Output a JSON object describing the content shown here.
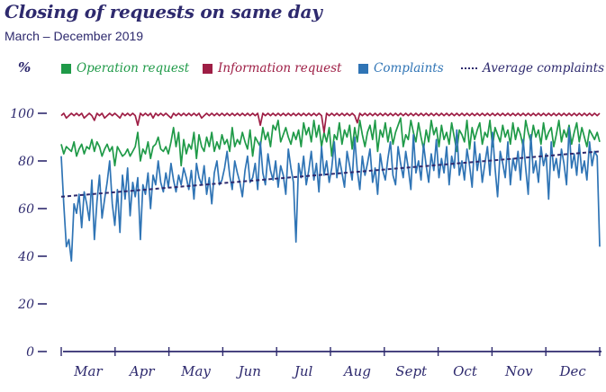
{
  "header": {
    "title": "Closing of requests on same day",
    "subtitle": "March – December 2019",
    "y_unit": "%"
  },
  "legend": [
    {
      "name": "Operation request",
      "color": "#1f9a48",
      "kind": "square"
    },
    {
      "name": "Information request",
      "color": "#9e1e45",
      "kind": "square"
    },
    {
      "name": "Complaints",
      "color": "#2f74b5",
      "kind": "square"
    },
    {
      "name": "Average complaints",
      "color": "#2e2a6e",
      "kind": "dotted"
    }
  ],
  "chart_data": {
    "type": "line",
    "title": "Closing of requests on same day",
    "subtitle": "March – December 2019",
    "ylabel": "%",
    "ylim": [
      0,
      100
    ],
    "yticks": [
      0,
      20,
      40,
      60,
      80,
      100
    ],
    "months": [
      "Mar",
      "Apr",
      "May",
      "Jun",
      "Jul",
      "Aug",
      "Sept",
      "Oct",
      "Nov",
      "Dec"
    ],
    "x": [
      1,
      2,
      3,
      4,
      5,
      6,
      7,
      8,
      9,
      10,
      11,
      12,
      13,
      14,
      15,
      16,
      17,
      18,
      19,
      20,
      21,
      22,
      23,
      24,
      25,
      26,
      27,
      28,
      29,
      30,
      31,
      32,
      33,
      34,
      35,
      36,
      37,
      38,
      39,
      40,
      41,
      42,
      43,
      44,
      45,
      46,
      47,
      48,
      49,
      50,
      51,
      52,
      53,
      54,
      55,
      56,
      57,
      58,
      59,
      60,
      61,
      62,
      63,
      64,
      65,
      66,
      67,
      68,
      69,
      70,
      71,
      72,
      73,
      74,
      75,
      76,
      77,
      78,
      79,
      80,
      81,
      82,
      83,
      84,
      85,
      86,
      87,
      88,
      89,
      90,
      91,
      92,
      93,
      94,
      95,
      96,
      97,
      98,
      99,
      100,
      101,
      102,
      103,
      104,
      105,
      106,
      107,
      108,
      109,
      110,
      111,
      112,
      113,
      114,
      115,
      116,
      117,
      118,
      119,
      120,
      121,
      122,
      123,
      124,
      125,
      126,
      127,
      128,
      129,
      130,
      131,
      132,
      133,
      134,
      135,
      136,
      137,
      138,
      139,
      140,
      141,
      142,
      143,
      144,
      145,
      146,
      147,
      148,
      149,
      150,
      151,
      152,
      153,
      154,
      155,
      156,
      157,
      158,
      159,
      160,
      161,
      162,
      163,
      164,
      165,
      166,
      167,
      168,
      169,
      170,
      171,
      172,
      173,
      174,
      175,
      176,
      177,
      178,
      179,
      180,
      181,
      182,
      183,
      184,
      185,
      186,
      187,
      188,
      189,
      190,
      191,
      192,
      193,
      194,
      195,
      196,
      197,
      198,
      199,
      200,
      201,
      202,
      203,
      204,
      205,
      206,
      207,
      208,
      209,
      210,
      211,
      212
    ],
    "series": [
      {
        "name": "Operation request",
        "color": "#1f9a48",
        "values": [
          87,
          83,
          86,
          85,
          84,
          88,
          82,
          85,
          87,
          83,
          86,
          85,
          89,
          84,
          88,
          86,
          82,
          85,
          87,
          84,
          86,
          78,
          86,
          84,
          82,
          83,
          85,
          82,
          84,
          86,
          92,
          80,
          85,
          83,
          88,
          81,
          86,
          87,
          90,
          85,
          84,
          86,
          83,
          88,
          94,
          86,
          92,
          78,
          89,
          83,
          87,
          85,
          92,
          81,
          91,
          86,
          84,
          90,
          86,
          92,
          84,
          88,
          85,
          91,
          87,
          89,
          84,
          94,
          86,
          89,
          87,
          92,
          88,
          85,
          93,
          82,
          90,
          88,
          86,
          94,
          89,
          92,
          86,
          95,
          93,
          97,
          88,
          91,
          94,
          90,
          87,
          92,
          89,
          93,
          86,
          96,
          91,
          94,
          88,
          97,
          90,
          95,
          86,
          92,
          88,
          94,
          82,
          91,
          89,
          96,
          87,
          93,
          90,
          95,
          85,
          94,
          88,
          97,
          91,
          86,
          92,
          95,
          89,
          97,
          84,
          93,
          90,
          96,
          88,
          94,
          87,
          92,
          95,
          98,
          86,
          91,
          89,
          97,
          92,
          88,
          96,
          90,
          85,
          93,
          88,
          97,
          91,
          94,
          86,
          95,
          89,
          92,
          87,
          96,
          90,
          84,
          93,
          91,
          88,
          97,
          85,
          94,
          89,
          93,
          96,
          87,
          92,
          90,
          97,
          86,
          94,
          91,
          88,
          95,
          90,
          93,
          87,
          96,
          89,
          94,
          91,
          86,
          97,
          92,
          88,
          95,
          90,
          93,
          87,
          96,
          89,
          92,
          94,
          86,
          91,
          97,
          88,
          93,
          90,
          95,
          87,
          92,
          96,
          88,
          94,
          90,
          86,
          93,
          91,
          89,
          92,
          88
        ]
      },
      {
        "name": "Information request",
        "color": "#9e1e45",
        "values": [
          99,
          100,
          98,
          99,
          100,
          99,
          100,
          99,
          100,
          98,
          99,
          100,
          99,
          97,
          100,
          99,
          100,
          98,
          99,
          100,
          99,
          100,
          99,
          98,
          100,
          99,
          100,
          99,
          100,
          99,
          95,
          100,
          99,
          100,
          99,
          100,
          98,
          100,
          99,
          100,
          99,
          100,
          99,
          98,
          100,
          99,
          100,
          99,
          100,
          99,
          100,
          99,
          100,
          99,
          100,
          98,
          99,
          100,
          99,
          100,
          99,
          100,
          99,
          100,
          99,
          100,
          99,
          100,
          99,
          100,
          99,
          100,
          99,
          100,
          99,
          100,
          99,
          100,
          95,
          100,
          99,
          100,
          99,
          100,
          99,
          100,
          99,
          100,
          99,
          100,
          99,
          100,
          99,
          100,
          99,
          100,
          99,
          100,
          99,
          100,
          99,
          100,
          99,
          92,
          100,
          99,
          100,
          99,
          100,
          99,
          100,
          99,
          100,
          99,
          100,
          99,
          96,
          100,
          99,
          100,
          99,
          100,
          99,
          100,
          99,
          100,
          99,
          100,
          99,
          100,
          99,
          100,
          99,
          100,
          99,
          100,
          99,
          100,
          99,
          100,
          99,
          100,
          99,
          100,
          99,
          100,
          99,
          100,
          99,
          100,
          99,
          100,
          99,
          100,
          99,
          100,
          99,
          100,
          99,
          100,
          99,
          100,
          99,
          100,
          99,
          100,
          99,
          100,
          99,
          100,
          99,
          100,
          99,
          100,
          99,
          100,
          99,
          100,
          99,
          100,
          99,
          100,
          99,
          100,
          99,
          100,
          99,
          100,
          99,
          100,
          99,
          100,
          99,
          100,
          99,
          100,
          99,
          100,
          99,
          100,
          99,
          100,
          99,
          100,
          99,
          100,
          99,
          100,
          99,
          100,
          99,
          100
        ]
      },
      {
        "name": "Complaints",
        "color": "#2f74b5",
        "values": [
          82,
          62,
          44,
          47,
          38,
          62,
          58,
          66,
          52,
          67,
          62,
          55,
          72,
          47,
          63,
          74,
          56,
          64,
          71,
          80,
          62,
          53,
          68,
          50,
          74,
          64,
          77,
          57,
          71,
          65,
          73,
          47,
          70,
          66,
          75,
          60,
          74,
          70,
          80,
          71,
          67,
          75,
          69,
          79,
          72,
          67,
          74,
          70,
          77,
          73,
          68,
          76,
          64,
          79,
          73,
          70,
          78,
          66,
          73,
          62,
          75,
          80,
          70,
          72,
          77,
          84,
          74,
          68,
          80,
          75,
          71,
          65,
          76,
          82,
          71,
          73,
          79,
          68,
          88,
          75,
          70,
          83,
          76,
          72,
          80,
          69,
          78,
          74,
          66,
          85,
          77,
          71,
          46,
          79,
          73,
          82,
          70,
          76,
          84,
          72,
          79,
          67,
          86,
          74,
          80,
          71,
          77,
          88,
          73,
          81,
          75,
          69,
          84,
          78,
          72,
          90,
          76,
          68,
          82,
          74,
          79,
          85,
          71,
          77,
          66,
          83,
          76,
          72,
          81,
          88,
          74,
          70,
          86,
          79,
          73,
          84,
          77,
          68,
          91,
          75,
          80,
          72,
          87,
          78,
          71,
          83,
          76,
          89,
          73,
          81,
          75,
          86,
          70,
          82,
          77,
          93,
          74,
          80,
          72,
          85,
          78,
          69,
          88,
          76,
          83,
          71,
          79,
          86,
          74,
          92,
          77,
          65,
          84,
          79,
          73,
          88,
          70,
          81,
          76,
          84,
          72,
          89,
          77,
          66,
          91,
          75,
          80,
          71,
          86,
          78,
          83,
          64,
          88,
          76,
          81,
          73,
          85,
          79,
          70,
          94,
          77,
          83,
          74,
          87,
          75,
          80,
          72,
          88,
          78,
          84,
          82,
          44
        ]
      },
      {
        "name": "Average complaints",
        "color": "#2e2a6e",
        "style": "dotted",
        "x": [
          1,
          212
        ],
        "values": [
          65,
          84
        ]
      }
    ]
  }
}
